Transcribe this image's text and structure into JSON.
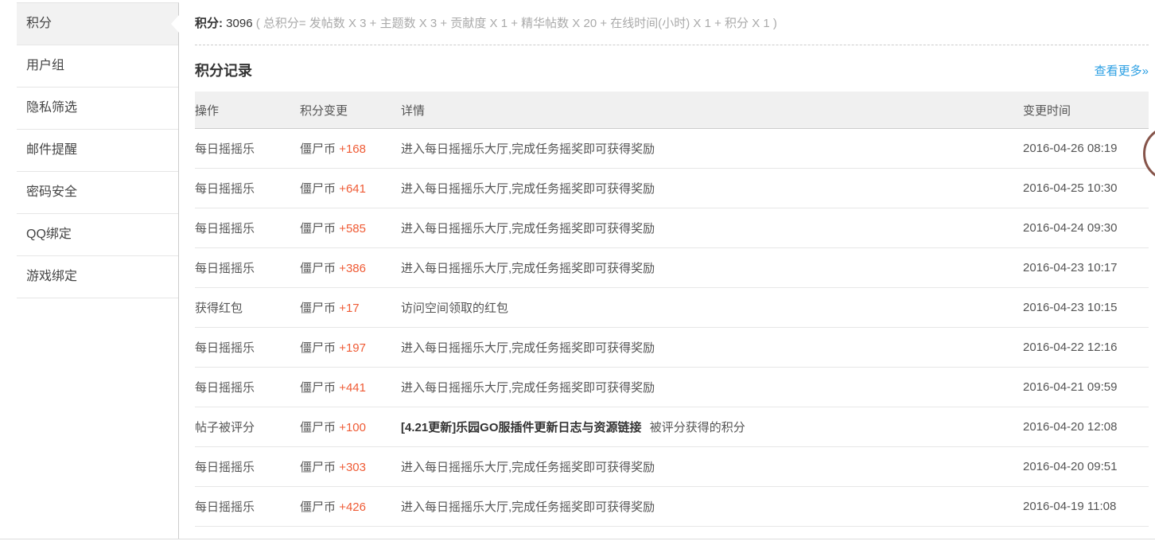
{
  "page": {
    "summary": {
      "label": "积分:",
      "value": "3096",
      "formula": "( 总积分= 发帖数 X 3 + 主题数 X 3 + 贡献度 X 1 + 精华帖数 X 20 + 在线时间(小时) X 1 + 积分 X 1 )"
    },
    "section_title": "积分记录",
    "more_link": "查看更多»"
  },
  "sidebar": {
    "items": [
      {
        "label": "积分",
        "active": true
      },
      {
        "label": "用户组",
        "active": false
      },
      {
        "label": "隐私筛选",
        "active": false
      },
      {
        "label": "邮件提醒",
        "active": false
      },
      {
        "label": "密码安全",
        "active": false
      },
      {
        "label": "QQ绑定",
        "active": false
      },
      {
        "label": "游戏绑定",
        "active": false
      }
    ]
  },
  "table": {
    "headers": [
      "操作",
      "积分变更",
      "详情",
      "变更时间"
    ],
    "rows": [
      {
        "action": "每日摇摇乐",
        "credit_name": "僵尸币",
        "credit_change": "+168",
        "detail_bold": "",
        "detail": "进入每日摇摇乐大厅,完成任务摇奖即可获得奖励",
        "time": "2016-04-26 08:19"
      },
      {
        "action": "每日摇摇乐",
        "credit_name": "僵尸币",
        "credit_change": "+641",
        "detail_bold": "",
        "detail": "进入每日摇摇乐大厅,完成任务摇奖即可获得奖励",
        "time": "2016-04-25 10:30"
      },
      {
        "action": "每日摇摇乐",
        "credit_name": "僵尸币",
        "credit_change": "+585",
        "detail_bold": "",
        "detail": "进入每日摇摇乐大厅,完成任务摇奖即可获得奖励",
        "time": "2016-04-24 09:30"
      },
      {
        "action": "每日摇摇乐",
        "credit_name": "僵尸币",
        "credit_change": "+386",
        "detail_bold": "",
        "detail": "进入每日摇摇乐大厅,完成任务摇奖即可获得奖励",
        "time": "2016-04-23 10:17"
      },
      {
        "action": "获得红包",
        "credit_name": "僵尸币",
        "credit_change": "+17",
        "detail_bold": "",
        "detail": "访问空间领取的红包",
        "time": "2016-04-23 10:15"
      },
      {
        "action": "每日摇摇乐",
        "credit_name": "僵尸币",
        "credit_change": "+197",
        "detail_bold": "",
        "detail": "进入每日摇摇乐大厅,完成任务摇奖即可获得奖励",
        "time": "2016-04-22 12:16"
      },
      {
        "action": "每日摇摇乐",
        "credit_name": "僵尸币",
        "credit_change": "+441",
        "detail_bold": "",
        "detail": "进入每日摇摇乐大厅,完成任务摇奖即可获得奖励",
        "time": "2016-04-21 09:59"
      },
      {
        "action": "帖子被评分",
        "credit_name": "僵尸币",
        "credit_change": "+100",
        "detail_bold": "[4.21更新]乐园GO服插件更新日志与资源链接",
        "detail": "被评分获得的积分",
        "time": "2016-04-20 12:08"
      },
      {
        "action": "每日摇摇乐",
        "credit_name": "僵尸币",
        "credit_change": "+303",
        "detail_bold": "",
        "detail": "进入每日摇摇乐大厅,完成任务摇奖即可获得奖励",
        "time": "2016-04-20 09:51"
      },
      {
        "action": "每日摇摇乐",
        "credit_name": "僵尸币",
        "credit_change": "+426",
        "detail_bold": "",
        "detail": "进入每日摇摇乐大厅,完成任务摇奖即可获得奖励",
        "time": "2016-04-19 11:08"
      }
    ]
  },
  "colors": {
    "credit_value_orange": "#ef5b35",
    "link_blue": "#2b9fe3",
    "active_item_bg": "#f2f2f2",
    "table_header_bg": "#f0f0f0",
    "float_circle_brown": "#86544a"
  }
}
